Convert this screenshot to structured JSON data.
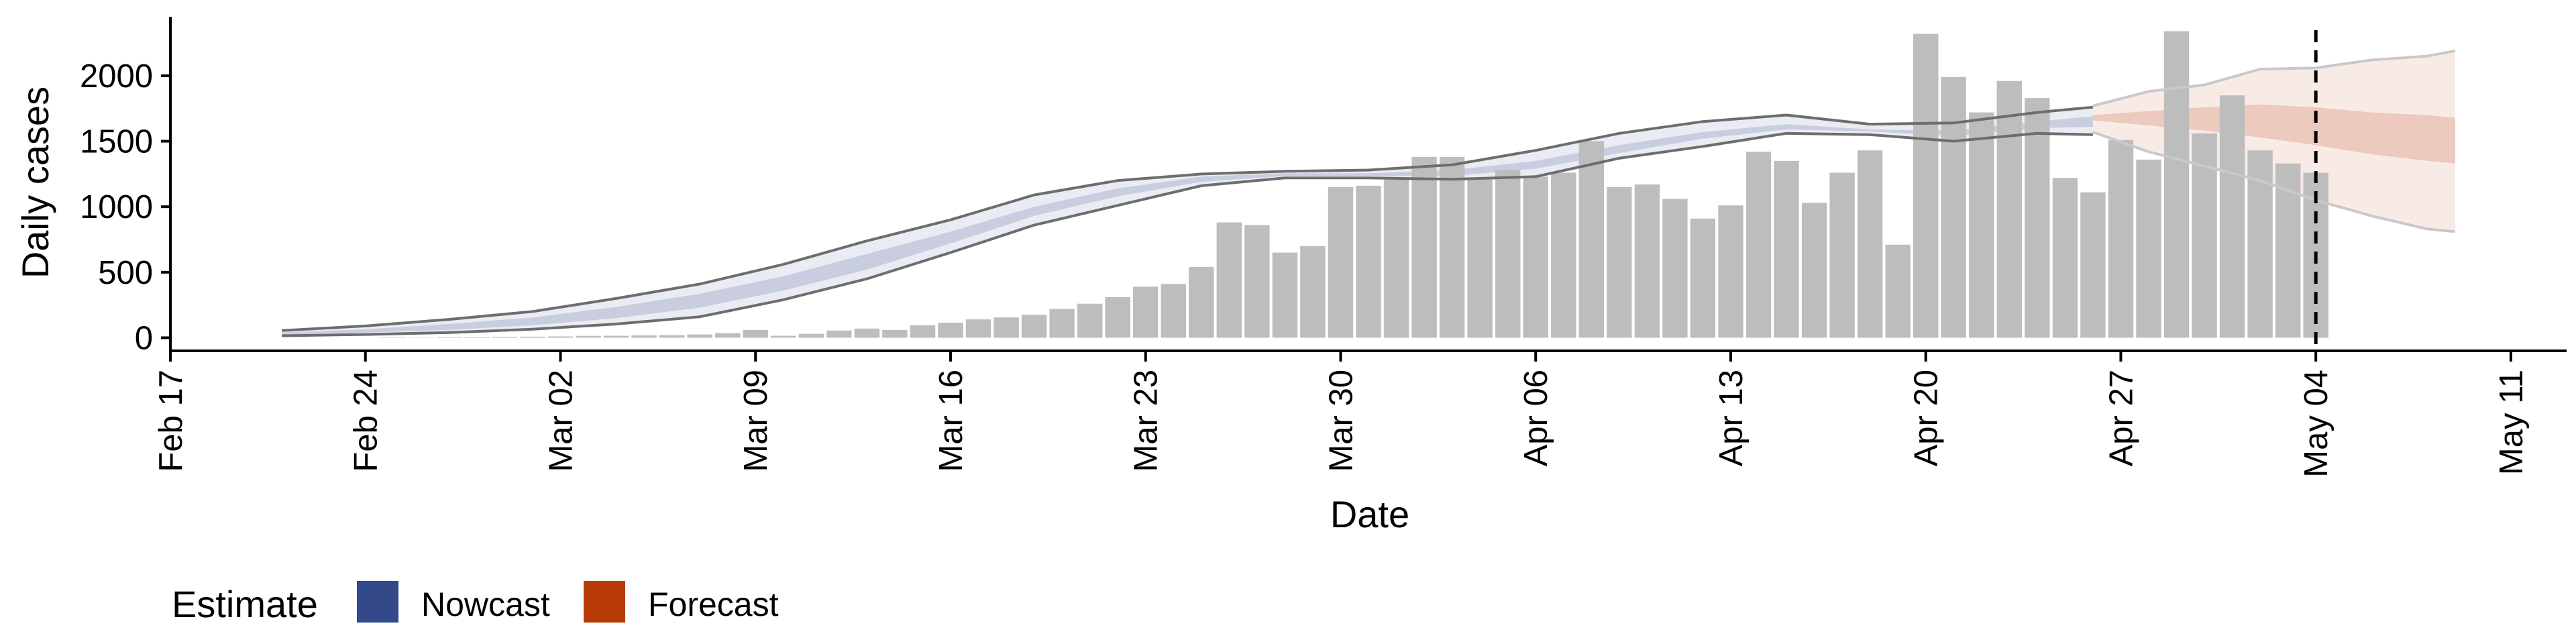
{
  "chart_data": {
    "type": "bar",
    "xlabel": "Date",
    "ylabel": "Daily cases",
    "x_tick_labels": [
      "Feb 17",
      "Feb 24",
      "Mar 02",
      "Mar 09",
      "Mar 16",
      "Mar 23",
      "Mar 30",
      "Apr 06",
      "Apr 13",
      "Apr 20",
      "Apr 27",
      "May 04",
      "May 11"
    ],
    "x_tick_dates": [
      "2020-02-17",
      "2020-02-24",
      "2020-03-02",
      "2020-03-09",
      "2020-03-16",
      "2020-03-23",
      "2020-03-30",
      "2020-04-06",
      "2020-04-13",
      "2020-04-20",
      "2020-04-27",
      "2020-05-04",
      "2020-05-11"
    ],
    "xlim": [
      "2020-02-17",
      "2020-05-13"
    ],
    "y_ticks": [
      0,
      500,
      1000,
      1500,
      2000
    ],
    "y_tick_labels": [
      "0",
      "500",
      "1000",
      "1500",
      "2000"
    ],
    "ylim": [
      -100,
      2450
    ],
    "grid": false,
    "reference_line": {
      "date": "2020-05-04",
      "style": "dashed"
    },
    "observed": {
      "dates": [
        "2020-02-25",
        "2020-02-26",
        "2020-02-27",
        "2020-02-28",
        "2020-02-29",
        "2020-03-01",
        "2020-03-02",
        "2020-03-03",
        "2020-03-04",
        "2020-03-05",
        "2020-03-06",
        "2020-03-07",
        "2020-03-08",
        "2020-03-09",
        "2020-03-10",
        "2020-03-11",
        "2020-03-12",
        "2020-03-13",
        "2020-03-14",
        "2020-03-15",
        "2020-03-16",
        "2020-03-17",
        "2020-03-18",
        "2020-03-19",
        "2020-03-20",
        "2020-03-21",
        "2020-03-22",
        "2020-03-23",
        "2020-03-24",
        "2020-03-25",
        "2020-03-26",
        "2020-03-27",
        "2020-03-28",
        "2020-03-29",
        "2020-03-30",
        "2020-03-31",
        "2020-04-01",
        "2020-04-02",
        "2020-04-03",
        "2020-04-04",
        "2020-04-05",
        "2020-04-06",
        "2020-04-07",
        "2020-04-08",
        "2020-04-09",
        "2020-04-10",
        "2020-04-11",
        "2020-04-12",
        "2020-04-13",
        "2020-04-14",
        "2020-04-15",
        "2020-04-16",
        "2020-04-17",
        "2020-04-18",
        "2020-04-19",
        "2020-04-20",
        "2020-04-21",
        "2020-04-22",
        "2020-04-23",
        "2020-04-24",
        "2020-04-25",
        "2020-04-26",
        "2020-04-27",
        "2020-04-28",
        "2020-04-29",
        "2020-04-30",
        "2020-05-01",
        "2020-05-02",
        "2020-05-03",
        "2020-05-04"
      ],
      "values": [
        3,
        2,
        4,
        5,
        6,
        8,
        10,
        14,
        15,
        18,
        20,
        25,
        35,
        60,
        15,
        30,
        55,
        70,
        60,
        95,
        115,
        140,
        155,
        175,
        220,
        260,
        310,
        390,
        410,
        540,
        880,
        860,
        650,
        700,
        1150,
        1160,
        1220,
        1380,
        1380,
        1210,
        1280,
        1230,
        1260,
        1500,
        1150,
        1170,
        1060,
        910,
        1010,
        1420,
        1350,
        1030,
        1260,
        1430,
        710,
        2320,
        1990,
        1720,
        1960,
        1830,
        1220,
        1110,
        1510,
        1360,
        2340,
        1560,
        1850,
        1430,
        1330,
        1260
      ]
    },
    "series": [
      {
        "name": "Nowcast",
        "color": "#34498A",
        "dates": [
          "2020-02-21",
          "2020-02-24",
          "2020-02-27",
          "2020-03-01",
          "2020-03-04",
          "2020-03-07",
          "2020-03-10",
          "2020-03-13",
          "2020-03-16",
          "2020-03-19",
          "2020-03-22",
          "2020-03-25",
          "2020-03-28",
          "2020-03-31",
          "2020-04-03",
          "2020-04-06",
          "2020-04-09",
          "2020-04-12",
          "2020-04-15",
          "2020-04-18",
          "2020-04-21",
          "2020-04-24",
          "2020-04-26"
        ],
        "upper_90": [
          55,
          90,
          140,
          200,
          300,
          410,
          560,
          740,
          900,
          1090,
          1200,
          1250,
          1270,
          1280,
          1320,
          1430,
          1560,
          1650,
          1700,
          1630,
          1640,
          1720,
          1760
        ],
        "lower_90": [
          15,
          25,
          40,
          65,
          105,
          160,
          290,
          450,
          650,
          860,
          1010,
          1160,
          1220,
          1220,
          1210,
          1230,
          1370,
          1460,
          1560,
          1550,
          1500,
          1560,
          1550
        ],
        "upper_50": [
          40,
          65,
          105,
          155,
          235,
          335,
          470,
          640,
          810,
          1000,
          1140,
          1230,
          1255,
          1255,
          1280,
          1350,
          1470,
          1570,
          1630,
          1590,
          1580,
          1650,
          1690
        ],
        "lower_50": [
          25,
          40,
          60,
          95,
          150,
          230,
          360,
          520,
          720,
          930,
          1080,
          1190,
          1235,
          1235,
          1235,
          1290,
          1410,
          1520,
          1590,
          1575,
          1540,
          1600,
          1610
        ]
      },
      {
        "name": "Forecast",
        "color": "#B83A06",
        "dates": [
          "2020-04-26",
          "2020-04-28",
          "2020-04-30",
          "2020-05-02",
          "2020-05-04",
          "2020-05-06",
          "2020-05-08",
          "2020-05-09"
        ],
        "upper_90": [
          1770,
          1880,
          1930,
          2050,
          2060,
          2120,
          2150,
          2190
        ],
        "lower_90": [
          1570,
          1420,
          1310,
          1200,
          1050,
          930,
          830,
          810
        ],
        "upper_50": [
          1700,
          1730,
          1760,
          1780,
          1760,
          1720,
          1700,
          1680
        ],
        "lower_50": [
          1660,
          1620,
          1580,
          1530,
          1470,
          1400,
          1350,
          1330
        ]
      }
    ],
    "legend": {
      "title": "Estimate",
      "entries": [
        {
          "label": "Nowcast",
          "color": "#34498A"
        },
        {
          "label": "Forecast",
          "color": "#B83A06"
        }
      ],
      "position": "bottom-left"
    }
  }
}
